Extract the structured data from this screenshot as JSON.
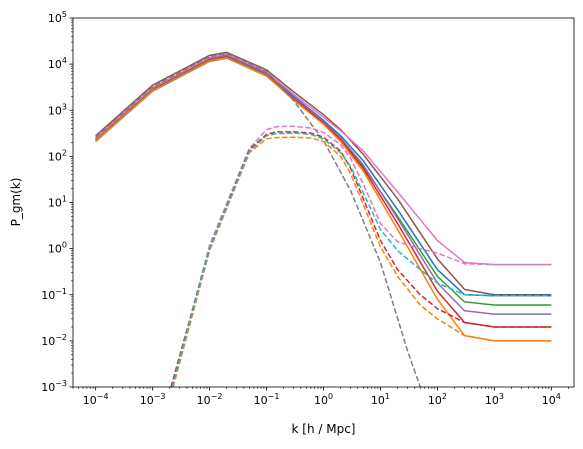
{
  "chart_data": {
    "type": "line",
    "xlabel": "k [h / Mpc]",
    "ylabel": "P_gm(k)",
    "xscale": "log",
    "yscale": "log",
    "xlim": [
      4e-05,
      25000
    ],
    "ylim": [
      0.001,
      100000
    ],
    "grid": false,
    "legend": "none",
    "x_ticks": [
      {
        "value": 0.0001,
        "base": "10",
        "exp": "−4"
      },
      {
        "value": 0.001,
        "base": "10",
        "exp": "−3"
      },
      {
        "value": 0.01,
        "base": "10",
        "exp": "−2"
      },
      {
        "value": 0.1,
        "base": "10",
        "exp": "−1"
      },
      {
        "value": 1,
        "base": "10",
        "exp": "0"
      },
      {
        "value": 10,
        "base": "10",
        "exp": "1"
      },
      {
        "value": 100,
        "base": "10",
        "exp": "2"
      },
      {
        "value": 1000,
        "base": "10",
        "exp": "3"
      },
      {
        "value": 10000,
        "base": "10",
        "exp": "4"
      }
    ],
    "y_ticks": [
      {
        "value": 0.001,
        "base": "10",
        "exp": "−3"
      },
      {
        "value": 0.01,
        "base": "10",
        "exp": "−2"
      },
      {
        "value": 0.1,
        "base": "10",
        "exp": "−1"
      },
      {
        "value": 1,
        "base": "10",
        "exp": "0"
      },
      {
        "value": 10,
        "base": "10",
        "exp": "1"
      },
      {
        "value": 100,
        "base": "10",
        "exp": "2"
      },
      {
        "value": 1000,
        "base": "10",
        "exp": "3"
      },
      {
        "value": 10000,
        "base": "10",
        "exp": "4"
      },
      {
        "value": 100000,
        "base": "10",
        "exp": "5"
      }
    ],
    "series": [
      {
        "color": "#8c564b",
        "style": "solid",
        "x": [
          0.0001,
          0.001,
          0.01,
          0.02,
          0.1,
          0.3,
          1,
          2,
          5,
          20,
          100,
          300,
          1000,
          10000
        ],
        "y": [
          280,
          3500,
          15500,
          18000,
          7500,
          2500,
          800,
          380,
          110,
          12,
          0.6,
          0.13,
          0.1,
          0.1
        ]
      },
      {
        "color": "#2ca02c",
        "style": "solid",
        "x": [
          0.0001,
          0.001,
          0.01,
          0.02,
          0.1,
          0.3,
          1,
          2,
          5,
          20,
          100,
          300,
          1000,
          10000
        ],
        "y": [
          210,
          2600,
          11500,
          13500,
          5500,
          1700,
          520,
          230,
          60,
          5,
          0.25,
          0.07,
          0.06,
          0.06
        ]
      },
      {
        "color": "#1f77b4",
        "style": "solid",
        "x": [
          0.0001,
          0.001,
          0.01,
          0.02,
          0.1,
          0.3,
          1,
          2,
          5,
          20,
          100,
          300,
          1000,
          10000
        ],
        "y": [
          240,
          3000,
          13500,
          16000,
          6500,
          2000,
          600,
          280,
          80,
          7,
          0.35,
          0.1,
          0.095,
          0.095
        ]
      },
      {
        "color": "#9467bd",
        "style": "solid",
        "x": [
          0.0001,
          0.001,
          0.01,
          0.02,
          0.1,
          0.3,
          1,
          2,
          5,
          20,
          100,
          300,
          1000,
          10000
        ],
        "y": [
          230,
          2850,
          12800,
          15000,
          6100,
          1850,
          560,
          250,
          65,
          4.5,
          0.18,
          0.045,
          0.038,
          0.038
        ]
      },
      {
        "color": "#d62728",
        "style": "solid",
        "x": [
          0.0001,
          0.001,
          0.01,
          0.02,
          0.1,
          0.3,
          1,
          2,
          5,
          20,
          100,
          300,
          1000,
          10000
        ],
        "y": [
          220,
          2700,
          12200,
          14300,
          5800,
          1750,
          530,
          230,
          55,
          3.5,
          0.12,
          0.025,
          0.02,
          0.02
        ]
      },
      {
        "color": "#ff7f0e",
        "style": "solid",
        "x": [
          0.0001,
          0.001,
          0.01,
          0.02,
          0.1,
          0.3,
          1,
          2,
          5,
          20,
          100,
          300,
          1000,
          10000
        ],
        "y": [
          215,
          2650,
          11800,
          13800,
          5600,
          1650,
          500,
          210,
          48,
          2.6,
          0.08,
          0.013,
          0.01,
          0.01
        ]
      },
      {
        "color": "#e377c2",
        "style": "solid",
        "x": [
          0.0001,
          0.001,
          0.01,
          0.02,
          0.1,
          0.3,
          1,
          2,
          5,
          20,
          100,
          300,
          1000,
          10000
        ],
        "y": [
          250,
          3100,
          14000,
          16500,
          6800,
          2200,
          700,
          360,
          130,
          17,
          1.5,
          0.5,
          0.45,
          0.45
        ]
      },
      {
        "color": "#7f7f7f",
        "style": "dashed",
        "x": [
          0.0001,
          0.001,
          0.01,
          0.02,
          0.1,
          0.3,
          1,
          3,
          10,
          30,
          50
        ],
        "y": [
          260,
          3200,
          14500,
          17000,
          7000,
          1600,
          220,
          18,
          0.5,
          0.006,
          0.001
        ]
      },
      {
        "color": "#e377c2",
        "style": "dashed",
        "x": [
          0.0022,
          0.01,
          0.05,
          0.1,
          0.15,
          0.3,
          0.6,
          1,
          2,
          3,
          5,
          10,
          20,
          50,
          100,
          300,
          1000,
          10000
        ],
        "y": [
          0.001,
          1.2,
          150,
          380,
          440,
          450,
          410,
          330,
          180,
          90,
          25,
          3.5,
          1.4,
          1.0,
          0.8,
          0.47,
          0.45,
          0.45
        ]
      },
      {
        "color": "#d62728",
        "style": "dashed",
        "x": [
          0.0021,
          0.01,
          0.05,
          0.1,
          0.15,
          0.3,
          0.6,
          1,
          2,
          3,
          5,
          10,
          20,
          50,
          100,
          300,
          1000,
          10000
        ],
        "y": [
          0.001,
          1.0,
          140,
          300,
          340,
          340,
          320,
          260,
          130,
          55,
          12,
          1.5,
          0.35,
          0.1,
          0.05,
          0.025,
          0.02,
          0.02
        ]
      },
      {
        "color": "#ff7f0e",
        "style": "dashed",
        "x": [
          0.0023,
          0.01,
          0.05,
          0.1,
          0.15,
          0.3,
          0.6,
          1,
          2,
          3,
          5,
          10,
          20,
          50,
          100,
          300,
          1000,
          10000
        ],
        "y": [
          0.001,
          0.9,
          120,
          240,
          255,
          260,
          250,
          210,
          100,
          42,
          9,
          1.1,
          0.25,
          0.06,
          0.03,
          0.013,
          0.01,
          0.01
        ]
      },
      {
        "color": "#17becf",
        "style": "dashed",
        "x": [
          0.0022,
          0.01,
          0.05,
          0.1,
          0.15,
          0.3,
          0.6,
          1,
          2,
          3,
          5,
          10,
          20,
          50,
          100,
          300,
          1000,
          10000
        ],
        "y": [
          0.001,
          1.0,
          130,
          280,
          310,
          320,
          300,
          240,
          120,
          60,
          16,
          2.6,
          0.9,
          0.35,
          0.18,
          0.1,
          0.095,
          0.095
        ]
      }
    ]
  }
}
